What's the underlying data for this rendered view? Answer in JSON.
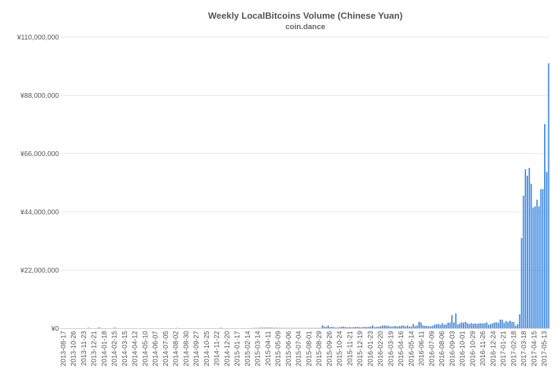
{
  "chart_data": {
    "type": "bar",
    "title": "Weekly LocalBitcoins Volume (Chinese Yuan)",
    "subtitle": "coin.dance",
    "xlabel": "",
    "ylabel": "",
    "ylim": [
      0,
      110000000
    ],
    "y_ticks": [
      0,
      22000000,
      44000000,
      66000000,
      88000000,
      110000000
    ],
    "y_tick_labels": [
      "¥0",
      "¥22,000,000",
      "¥44,000,000",
      "¥66,000,000",
      "¥88,000,000",
      "¥110,000,000"
    ],
    "x_tick_labels": [
      "2013-08-17",
      "2013-10-26",
      "2013-11-23",
      "2013-12-21",
      "2014-01-18",
      "2014-02-15",
      "2014-03-15",
      "2014-04-12",
      "2014-05-10",
      "2014-06-07",
      "2014-07-05",
      "2014-08-02",
      "2014-08-30",
      "2014-09-27",
      "2014-10-25",
      "2014-11-22",
      "2014-12-20",
      "2015-01-17",
      "2015-02-14",
      "2015-03-14",
      "2015-04-11",
      "2015-05-09",
      "2015-06-06",
      "2015-07-04",
      "2015-08-01",
      "2015-08-29",
      "2015-09-26",
      "2015-10-24",
      "2015-11-21",
      "2015-12-19",
      "2016-01-23",
      "2016-02-20",
      "2016-03-19",
      "2016-04-16",
      "2016-05-14",
      "2016-06-11",
      "2016-07-09",
      "2016-08-06",
      "2016-09-03",
      "2016-10-01",
      "2016-10-29",
      "2016-11-26",
      "2016-12-24",
      "2017-01-21",
      "2017-02-18",
      "2017-03-18",
      "2017-04-15",
      "2017-05-13"
    ],
    "grid": true,
    "color": "#4a90e2",
    "values": [
      0,
      0,
      0,
      0,
      0,
      0,
      0,
      0,
      0,
      0,
      0,
      0,
      0,
      0,
      200000,
      0,
      0,
      0,
      0,
      200000,
      200000,
      0,
      0,
      0,
      0,
      0,
      0,
      100000,
      200000,
      0,
      0,
      0,
      0,
      0,
      0,
      0,
      0,
      0,
      0,
      0,
      0,
      0,
      0,
      0,
      0,
      0,
      0,
      0,
      0,
      0,
      0,
      0,
      0,
      0,
      0,
      0,
      0,
      0,
      0,
      0,
      100000,
      0,
      0,
      0,
      0,
      0,
      0,
      0,
      0,
      0,
      0,
      0,
      0,
      0,
      0,
      0,
      0,
      0,
      0,
      0,
      0,
      0,
      100000,
      100000,
      0,
      0,
      0,
      0,
      0,
      0,
      0,
      0,
      0,
      0,
      0,
      0,
      0,
      0,
      0,
      100000,
      100000,
      100000,
      100000,
      200000,
      200000,
      200000,
      200000,
      200000,
      200000,
      200000,
      100000,
      200000,
      100000,
      100000,
      100000,
      100000,
      100000,
      100000,
      100000,
      100000,
      100000,
      100000,
      100000,
      100000,
      100000,
      100000,
      100000,
      100000,
      100000,
      100000,
      100000,
      100000,
      100000,
      100000,
      100000,
      1100000,
      600000,
      500000,
      1000000,
      400000,
      500000,
      400000,
      200000,
      300000,
      400000,
      500000,
      600000,
      400000,
      300000,
      400000,
      300000,
      400000,
      400000,
      500000,
      400000,
      300000,
      400000,
      500000,
      400000,
      500000,
      600000,
      1000000,
      400000,
      500000,
      500000,
      700000,
      900000,
      1000000,
      900000,
      900000,
      700000,
      500000,
      700000,
      800000,
      600000,
      800000,
      900000,
      1000000,
      600000,
      1000000,
      600000,
      600000,
      1600000,
      800000,
      1000000,
      2400000,
      2100000,
      1000000,
      900000,
      800000,
      700000,
      700000,
      900000,
      1300000,
      1400000,
      1600000,
      1200000,
      1900000,
      1300000,
      1400000,
      2100000,
      2100000,
      4900000,
      2100000,
      5600000,
      1400000,
      1700000,
      2200000,
      2000000,
      2400000,
      1900000,
      1500000,
      1900000,
      1600000,
      1800000,
      1600000,
      1800000,
      1800000,
      1800000,
      1800000,
      2200000,
      1300000,
      1500000,
      1800000,
      2100000,
      2200000,
      2000000,
      3200000,
      3200000,
      2000000,
      2700000,
      2300000,
      2800000,
      2400000,
      2300000,
      900000,
      1500000,
      5200000,
      34000000,
      50000000,
      60000000,
      57500000,
      60500000,
      54500000,
      45500000,
      46000000,
      48500000,
      46000000,
      52500000,
      52500000,
      77000000,
      59000000,
      100000000
    ]
  }
}
